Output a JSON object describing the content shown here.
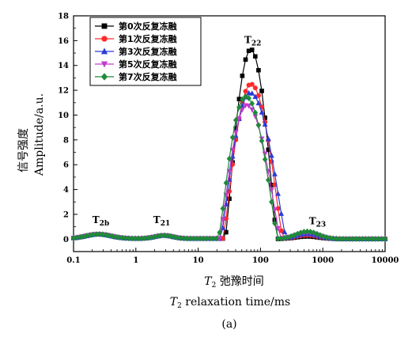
{
  "chart_data": {
    "type": "line",
    "x_scale": "log",
    "xlim": [
      0.1,
      10000
    ],
    "ylim": [
      -1,
      18
    ],
    "x_ticks": [
      "0.1",
      "1",
      "10",
      "100",
      "1000",
      "10000"
    ],
    "x_tick_values": [
      0.1,
      1,
      10,
      100,
      1000,
      10000
    ],
    "y_ticks": [
      "0",
      "2",
      "4",
      "6",
      "8",
      "10",
      "12",
      "14",
      "16",
      "18"
    ],
    "y_tick_values": [
      0,
      2,
      4,
      6,
      8,
      10,
      12,
      14,
      16,
      18
    ],
    "ylabel_cn": "信号强度",
    "ylabel_en": "Amplitude/a.u.",
    "xlabel_var": "T",
    "xlabel_sub": "2",
    "xlabel_cn": " 弛豫时间",
    "xlabel_en": " relaxation  time/ms",
    "caption": "(a)",
    "legend_position": "top-left",
    "annotations": [
      {
        "main": "T",
        "sub": "2b",
        "x": 0.2,
        "y": 1.3
      },
      {
        "main": "T",
        "sub": "21",
        "x": 1.9,
        "y": 1.3
      },
      {
        "main": "T",
        "sub": "22",
        "x": 55,
        "y": 15.8
      },
      {
        "main": "T",
        "sub": "23",
        "x": 600,
        "y": 1.2
      }
    ],
    "series": [
      {
        "name": "第0次反复冻融",
        "color": "#000000",
        "marker": "square",
        "peak": 15.3,
        "peak_x": 70,
        "start_x": 27,
        "end_x": 185,
        "tail": 0.2
      },
      {
        "name": "第1次反复冻融",
        "color": "#ff2a2a",
        "marker": "circle",
        "peak": 12.5,
        "peak_x": 70,
        "start_x": 25,
        "end_x": 230,
        "tail": 0.3
      },
      {
        "name": "第3次反复冻融",
        "color": "#2b3bd6",
        "marker": "triangle-up",
        "peak": 11.8,
        "peak_x": 68,
        "start_x": 23,
        "end_x": 260,
        "tail": 0.4
      },
      {
        "name": "第5次反复冻融",
        "color": "#c23ccf",
        "marker": "triangle-down",
        "peak": 10.8,
        "peak_x": 60,
        "start_x": 22,
        "end_x": 210,
        "tail": 0.5
      },
      {
        "name": "第7次反复冻融",
        "color": "#1f8a3a",
        "marker": "diamond",
        "peak": 11.5,
        "peak_x": 58,
        "start_x": 21,
        "end_x": 190,
        "tail": 0.6
      }
    ]
  }
}
